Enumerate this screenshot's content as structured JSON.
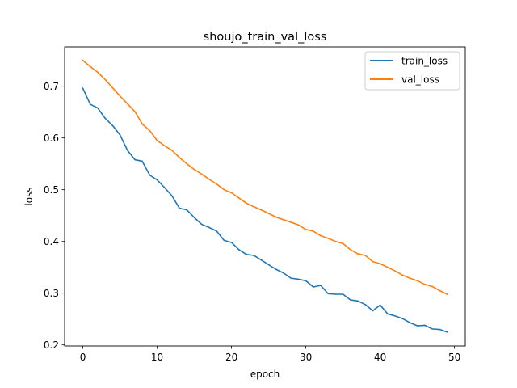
{
  "chart_data": {
    "type": "line",
    "title": "shoujo_train_val_loss",
    "xlabel": "epoch",
    "ylabel": "loss",
    "xlim": [
      -2.45,
      51.45
    ],
    "ylim": [
      0.198,
      0.776
    ],
    "xticks": [
      0,
      10,
      20,
      30,
      40,
      50
    ],
    "yticks": [
      0.2,
      0.3,
      0.4,
      0.5,
      0.6,
      0.7
    ],
    "ytick_labels": [
      "0.2",
      "0.3",
      "0.4",
      "0.5",
      "0.6",
      "0.7"
    ],
    "grid": false,
    "legend_position": "upper right",
    "x": [
      0,
      1,
      2,
      3,
      4,
      5,
      6,
      7,
      8,
      9,
      10,
      11,
      12,
      13,
      14,
      15,
      16,
      17,
      18,
      19,
      20,
      21,
      22,
      23,
      24,
      25,
      26,
      27,
      28,
      29,
      30,
      31,
      32,
      33,
      34,
      35,
      36,
      37,
      38,
      39,
      40,
      41,
      42,
      43,
      44,
      45,
      46,
      47,
      48,
      49
    ],
    "series": [
      {
        "name": "train_loss",
        "color": "#1f77b4",
        "values": [
          0.696,
          0.665,
          0.658,
          0.638,
          0.624,
          0.606,
          0.576,
          0.558,
          0.555,
          0.528,
          0.519,
          0.504,
          0.488,
          0.464,
          0.461,
          0.446,
          0.433,
          0.427,
          0.42,
          0.402,
          0.398,
          0.384,
          0.375,
          0.373,
          0.364,
          0.355,
          0.346,
          0.339,
          0.329,
          0.327,
          0.324,
          0.312,
          0.315,
          0.299,
          0.298,
          0.298,
          0.287,
          0.285,
          0.278,
          0.266,
          0.277,
          0.26,
          0.256,
          0.251,
          0.243,
          0.237,
          0.238,
          0.231,
          0.23,
          0.225
        ]
      },
      {
        "name": "val_loss",
        "color": "#ff7f0e",
        "values": [
          0.75,
          0.738,
          0.727,
          0.713,
          0.697,
          0.681,
          0.666,
          0.651,
          0.627,
          0.614,
          0.595,
          0.585,
          0.576,
          0.562,
          0.55,
          0.539,
          0.53,
          0.52,
          0.511,
          0.5,
          0.494,
          0.484,
          0.474,
          0.467,
          0.461,
          0.454,
          0.447,
          0.442,
          0.437,
          0.432,
          0.423,
          0.42,
          0.411,
          0.406,
          0.4,
          0.396,
          0.384,
          0.376,
          0.373,
          0.361,
          0.357,
          0.35,
          0.343,
          0.335,
          0.329,
          0.324,
          0.317,
          0.313,
          0.305,
          0.298
        ]
      }
    ]
  }
}
